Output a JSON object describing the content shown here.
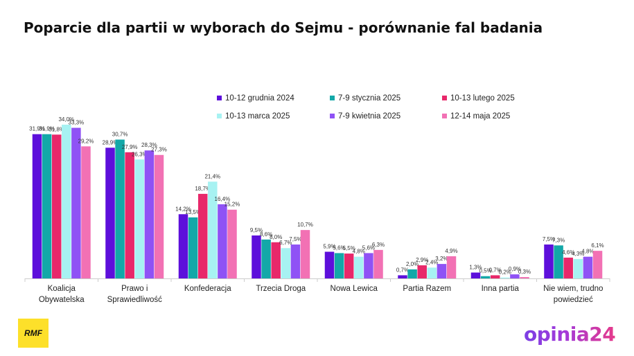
{
  "chart_data": {
    "type": "bar",
    "title": "Poparcie dla partii w wyborach do Sejmu - porównanie fal badania",
    "xlabel": "",
    "ylabel": "",
    "ylim": [
      0,
      40
    ],
    "grid": false,
    "legend": "top-right",
    "categories": [
      [
        "Koalicja",
        "Obywatelska"
      ],
      [
        "Prawo i",
        "Sprawiedliwość"
      ],
      [
        "Konfederacja"
      ],
      [
        "Trzecia Droga"
      ],
      [
        "Nowa Lewica"
      ],
      [
        "Partia Razem"
      ],
      [
        "Inna partia"
      ],
      [
        "Nie wiem, trudno",
        "powiedzieć"
      ]
    ],
    "series": [
      {
        "name": "10-12 grudnia 2024",
        "color": "#5d0fdb",
        "values": [
          31.9,
          28.9,
          14.2,
          9.5,
          5.9,
          0.7,
          1.3,
          7.5
        ],
        "labels": [
          "31,9%",
          "28,9%",
          "14,2%",
          "9,5%",
          "5,9%",
          "0,7%",
          "1,3%",
          "7,5%"
        ]
      },
      {
        "name": "7-9 stycznia 2025",
        "color": "#13a8a8",
        "values": [
          31.9,
          30.7,
          13.5,
          8.6,
          5.6,
          2.0,
          0.5,
          7.3
        ],
        "labels": [
          "31,9%",
          "30,7%",
          "13,5%",
          "8,6%",
          "5,6%",
          "2,0%",
          "0,5%",
          "7,3%"
        ]
      },
      {
        "name": "10-13 lutego 2025",
        "color": "#e8286a",
        "values": [
          31.8,
          27.9,
          18.7,
          8.0,
          5.5,
          2.9,
          0.7,
          4.6
        ],
        "labels": [
          "31,8%",
          "27,9%",
          "18,7%",
          "8,0%",
          "5,5%",
          "2,9%",
          "0,7%",
          "4,6%"
        ]
      },
      {
        "name": "10-13 marca 2025",
        "color": "#a7f2f2",
        "values": [
          34.0,
          26.3,
          21.4,
          6.7,
          4.8,
          2.4,
          0.2,
          4.3
        ],
        "labels": [
          "34,0%",
          "26,3%",
          "21,4%",
          "6,7%",
          "4,8%",
          "2,4%",
          "0,2%",
          "4,3%"
        ]
      },
      {
        "name": "7-9 kwietnia 2025",
        "color": "#8f52f5",
        "values": [
          33.3,
          28.3,
          16.4,
          7.5,
          5.6,
          3.2,
          0.9,
          4.8
        ],
        "labels": [
          "33,3%",
          "28,3%",
          "16,4%",
          "7,5%",
          "5,6%",
          "3,2%",
          "0,9%",
          "4,8%"
        ]
      },
      {
        "name": "12-14 maja 2025",
        "color": "#f271b4",
        "values": [
          29.2,
          27.3,
          15.2,
          10.7,
          6.3,
          4.9,
          0.3,
          6.1
        ],
        "labels": [
          "29,2%",
          "27,3%",
          "15,2%",
          "10,7%",
          "6,3%",
          "4,9%",
          "0,3%",
          "6,1%"
        ]
      }
    ]
  },
  "logos": {
    "rmf": "RMF",
    "opinia": "opinia24"
  }
}
